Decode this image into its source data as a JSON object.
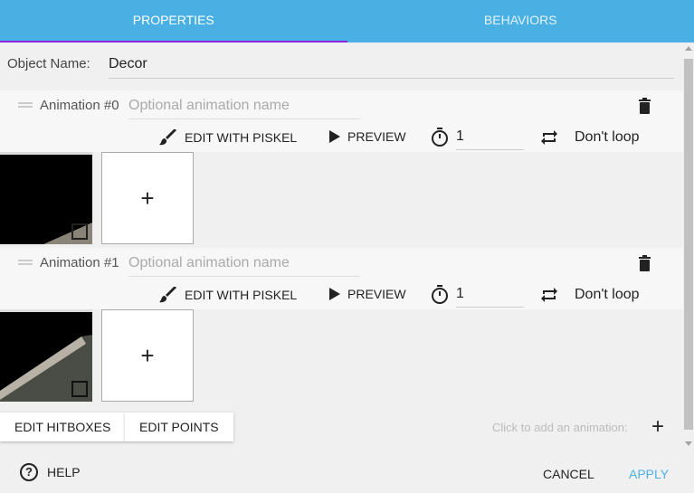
{
  "tabs": [
    {
      "label": "PROPERTIES",
      "active": true
    },
    {
      "label": "BEHAVIORS",
      "active": false
    }
  ],
  "colors": {
    "accent": "#4ab0e4",
    "tab_indicator": "#8a2be2"
  },
  "object": {
    "label": "Object Name:",
    "value": "Decor"
  },
  "animations": [
    {
      "title": "Animation #0",
      "name_placeholder": "Optional animation name",
      "edit_label": "EDIT WITH PISKEL",
      "preview_label": "PREVIEW",
      "fps": "1",
      "loop_label": "Don't loop"
    },
    {
      "title": "Animation #1",
      "name_placeholder": "Optional animation name",
      "edit_label": "EDIT WITH PISKEL",
      "preview_label": "PREVIEW",
      "fps": "1",
      "loop_label": "Don't loop"
    }
  ],
  "add_frame": "+",
  "buttons": {
    "edit_hitboxes": "EDIT HITBOXES",
    "edit_points": "EDIT POINTS",
    "add_hint": "Click to add an animation:",
    "add": "+"
  },
  "footer": {
    "help": "HELP",
    "cancel": "CANCEL",
    "apply": "APPLY"
  }
}
